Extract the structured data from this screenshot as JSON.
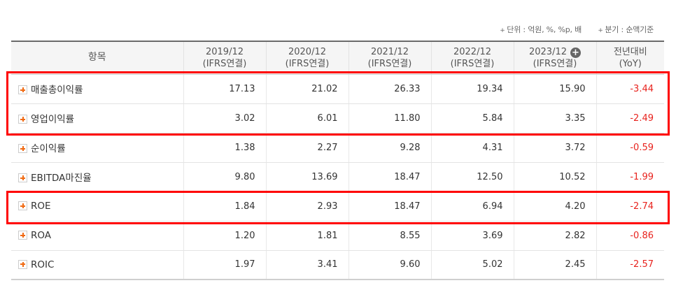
{
  "notes": {
    "unit": "단위 : 억원, %, %p, 배",
    "quarter": "분기 : 순액기준"
  },
  "header": {
    "item": "항목",
    "periods": [
      {
        "year": "2019/12",
        "basis": "(IFRS연결)"
      },
      {
        "year": "2020/12",
        "basis": "(IFRS연결)"
      },
      {
        "year": "2021/12",
        "basis": "(IFRS연결)"
      },
      {
        "year": "2022/12",
        "basis": "(IFRS연결)"
      },
      {
        "year": "2023/12",
        "basis": "(IFRS연결)"
      }
    ],
    "expand_symbol": "+",
    "yoy_title": "전년대비",
    "yoy_sub": "(YoY)"
  },
  "rows": [
    {
      "label": "매출총이익률",
      "values": [
        "17.13",
        "21.02",
        "26.33",
        "19.34",
        "15.90"
      ],
      "yoy": "-3.44"
    },
    {
      "label": "영업이익률",
      "values": [
        "3.02",
        "6.01",
        "11.80",
        "5.84",
        "3.35"
      ],
      "yoy": "-2.49"
    },
    {
      "label": "순이익률",
      "values": [
        "1.38",
        "2.27",
        "9.28",
        "4.31",
        "3.72"
      ],
      "yoy": "-0.59"
    },
    {
      "label": "EBITDA마진율",
      "values": [
        "9.80",
        "13.69",
        "18.47",
        "12.50",
        "10.52"
      ],
      "yoy": "-1.99"
    },
    {
      "label": "ROE",
      "values": [
        "1.84",
        "2.93",
        "18.47",
        "6.94",
        "4.20"
      ],
      "yoy": "-2.74"
    },
    {
      "label": "ROA",
      "values": [
        "1.20",
        "1.81",
        "8.55",
        "3.69",
        "2.82"
      ],
      "yoy": "-0.86"
    },
    {
      "label": "ROIC",
      "values": [
        "1.97",
        "3.41",
        "9.60",
        "5.02",
        "2.45"
      ],
      "yoy": "-2.57"
    }
  ],
  "colors": {
    "highlight": "#ff0000",
    "negative": "#e8231e",
    "expand_icon": "#f06a13"
  }
}
